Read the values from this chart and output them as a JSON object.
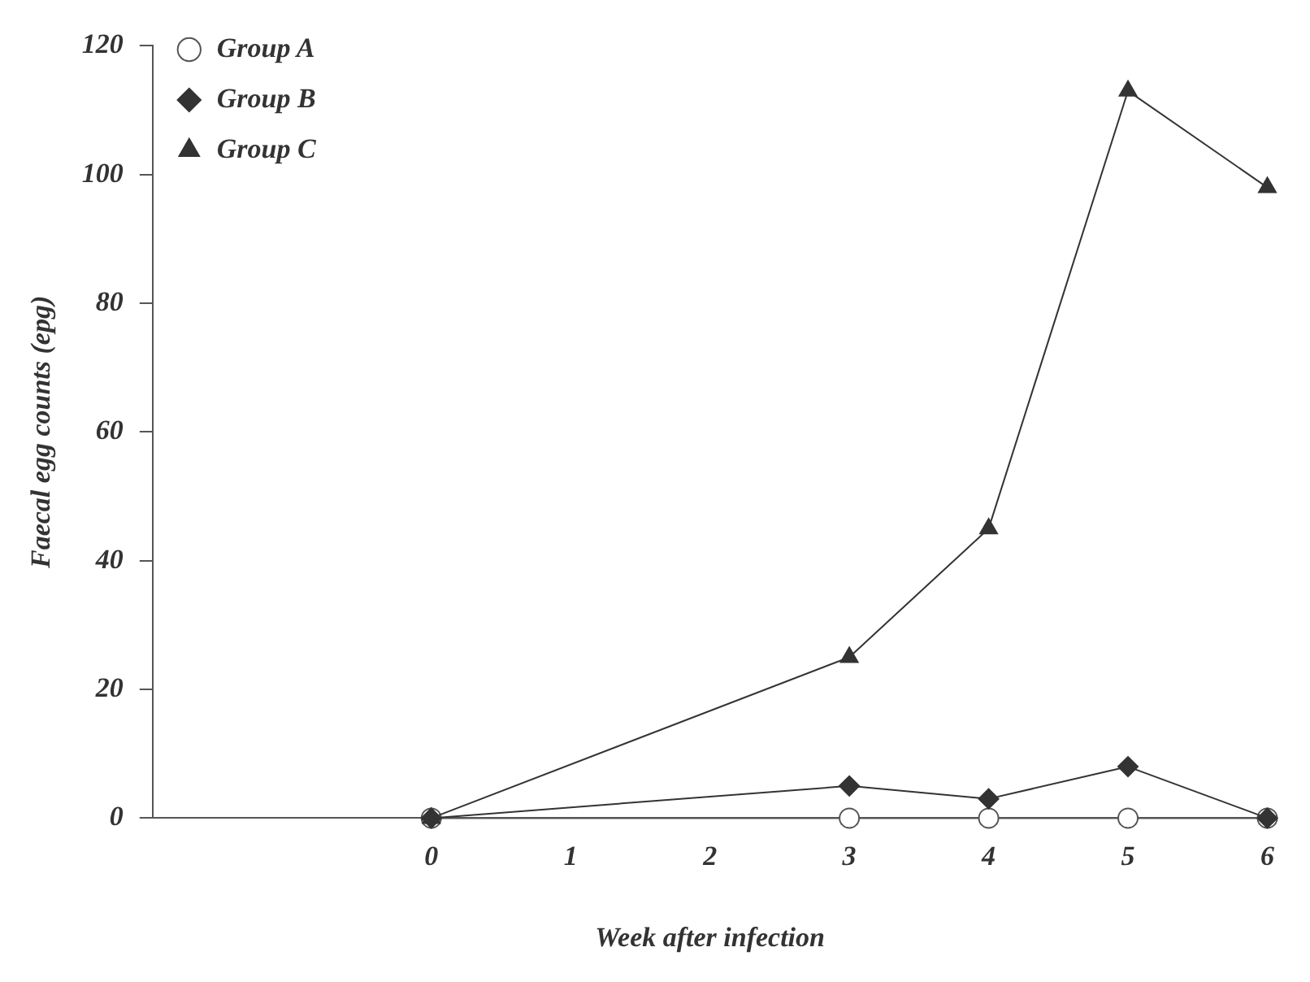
{
  "chart_data": {
    "type": "line",
    "xlabel": "Week after infection",
    "ylabel": "Faecal egg counts (epg)",
    "x": [
      0,
      3,
      4,
      5,
      6
    ],
    "xlim": [
      -2,
      6
    ],
    "xticks": [
      0,
      1,
      2,
      3,
      4,
      5,
      6
    ],
    "ylim": [
      0,
      120
    ],
    "yticks": [
      0,
      20,
      40,
      60,
      80,
      100,
      120
    ],
    "grid": false,
    "legend": "top left",
    "line_style": "solid",
    "series": [
      {
        "name": "Group A",
        "color": "#555555",
        "marker": "circle",
        "values": [
          0,
          0,
          0,
          0,
          0
        ]
      },
      {
        "name": "Group B",
        "color": "#333333",
        "marker": "diamond",
        "values": [
          0,
          5,
          3,
          8,
          0
        ]
      },
      {
        "name": "Group C",
        "color": "#333333",
        "marker": "triangle",
        "values": [
          0,
          25,
          45,
          113,
          98
        ]
      }
    ]
  }
}
